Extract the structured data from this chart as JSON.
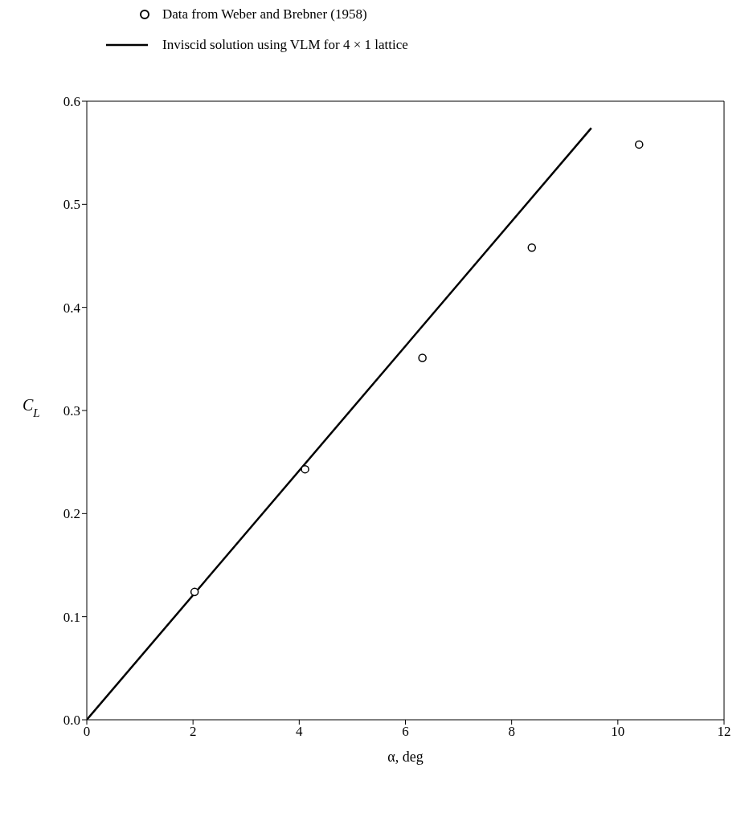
{
  "chart_data": {
    "type": "scatter",
    "xlabel": "α, deg",
    "ylabel": "C$_{L}$",
    "series": [
      {
        "name": "Data from Weber and Brebner (1958)",
        "color": "#000000",
        "marker": "circle",
        "x": [
          2.03,
          4.11,
          6.32,
          8.38,
          10.4
        ],
        "values": [
          0.124,
          0.243,
          0.351,
          0.458,
          0.558
        ]
      },
      {
        "name": "Inviscid solution using VLM for 4 × 1 lattice",
        "type": "line",
        "color": "#000000",
        "marker": "none",
        "line_style": "solid",
        "x": [
          0,
          9.5
        ],
        "values": [
          0,
          0.574
        ]
      }
    ],
    "xlim": [
      0,
      12
    ],
    "xticks": [
      0,
      2,
      4,
      6,
      8,
      10,
      12
    ],
    "ylim": [
      0,
      0.6
    ],
    "yticks": [
      {
        "value": 0,
        "label": "0.0"
      },
      0.1,
      0.2,
      0.3,
      0.4,
      0.5,
      0.6
    ],
    "grid": false,
    "legend": "top left"
  }
}
